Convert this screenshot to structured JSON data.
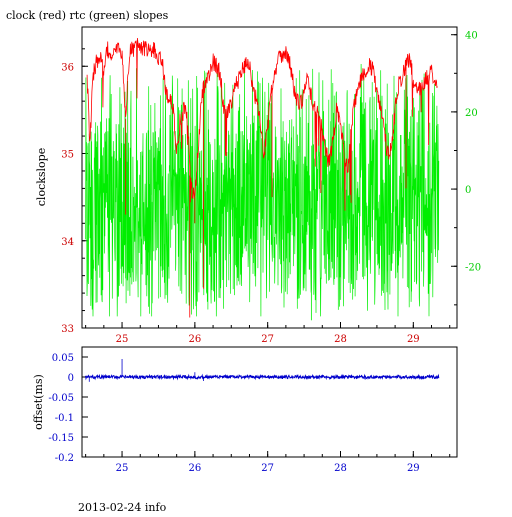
{
  "caption": "2013-02-24 info",
  "colors": {
    "clock": "#ff0000",
    "rtc": "#00ee00",
    "offset": "#0000cc",
    "frame": "#000000",
    "left_ticks": "#cc0000",
    "right_ticks": "#00cc00",
    "offset_ticks": "#0000cc"
  },
  "chart_data": [
    {
      "type": "line",
      "title": "clock (red) rtc (green) slopes",
      "xlabel": "",
      "ylabel": "clockslope",
      "xlim": [
        24.45,
        29.6
      ],
      "ylim": [
        33,
        36.45
      ],
      "y2lim": [
        -36,
        42
      ],
      "grid": false,
      "x_ticks": [
        "25",
        "26",
        "27",
        "28",
        "29"
      ],
      "y_ticks": [
        "33",
        "34",
        "35",
        "36"
      ],
      "y2_ticks": [
        "-20",
        "0",
        "20",
        "40"
      ],
      "series": [
        {
          "name": "clock",
          "axis": "left",
          "x": [
            24.52,
            24.56,
            24.6,
            24.65,
            24.7,
            24.75,
            24.8,
            24.85,
            24.9,
            24.95,
            25.0,
            25.05,
            25.1,
            25.15,
            25.2,
            25.25,
            25.3,
            25.35,
            25.4,
            25.45,
            25.5,
            25.55,
            25.6,
            25.65,
            25.7,
            25.75,
            25.8,
            25.85,
            25.9,
            25.95,
            26.0,
            26.05,
            26.1,
            26.15,
            26.2,
            26.25,
            26.3,
            26.35,
            26.4,
            26.45,
            26.5,
            26.55,
            26.6,
            26.65,
            26.7,
            26.75,
            26.8,
            26.85,
            26.9,
            26.95,
            27.0,
            27.05,
            27.1,
            27.15,
            27.2,
            27.25,
            27.3,
            27.35,
            27.4,
            27.45,
            27.5,
            27.55,
            27.6,
            27.65,
            27.7,
            27.75,
            27.8,
            27.85,
            27.9,
            27.95,
            28.0,
            28.05,
            28.1,
            28.15,
            28.2,
            28.25,
            28.3,
            28.35,
            28.4,
            28.45,
            28.5,
            28.55,
            28.6,
            28.65,
            28.7,
            28.75,
            28.8,
            28.85,
            28.9,
            28.95,
            29.0,
            29.05,
            29.1,
            29.15,
            29.2,
            29.25,
            29.3,
            29.33
          ],
          "values": [
            35.9,
            35.1,
            35.9,
            36.05,
            36.1,
            35.95,
            36.2,
            36.1,
            36.15,
            36.2,
            36.15,
            35.4,
            36.15,
            36.2,
            36.25,
            36.2,
            36.2,
            36.2,
            36.15,
            36.2,
            36.1,
            36.05,
            35.75,
            35.6,
            35.55,
            35.0,
            35.4,
            35.5,
            35.4,
            34.6,
            34.5,
            35.1,
            35.7,
            35.85,
            35.9,
            36.05,
            36.0,
            35.9,
            35.5,
            35.45,
            35.55,
            35.75,
            35.85,
            35.95,
            36.05,
            36.0,
            35.75,
            35.6,
            35.3,
            35.0,
            35.3,
            35.7,
            35.95,
            36.1,
            36.15,
            36.15,
            36.05,
            35.8,
            35.6,
            35.55,
            35.7,
            35.85,
            35.65,
            35.5,
            35.45,
            35.25,
            35.0,
            34.9,
            35.2,
            35.5,
            35.35,
            35.0,
            34.8,
            35.3,
            35.6,
            35.8,
            35.9,
            35.95,
            36.0,
            35.95,
            35.7,
            35.5,
            35.25,
            35.0,
            35.1,
            35.5,
            35.8,
            35.9,
            36.0,
            36.1,
            35.85,
            35.7,
            35.75,
            35.8,
            35.9,
            35.95,
            35.85,
            35.85
          ]
        },
        {
          "name": "rtc",
          "axis": "right",
          "x": [
            24.5,
            25.0,
            25.5,
            26.0,
            26.5,
            27.0,
            27.5,
            28.0,
            28.5,
            29.0,
            29.35
          ],
          "values": [
            -5,
            -6,
            -5,
            -6,
            -5,
            -4,
            -5,
            -5,
            -4,
            -5,
            -5
          ]
        }
      ]
    },
    {
      "type": "line",
      "title": "",
      "xlabel": "",
      "ylabel": "offset(ms)",
      "xlim": [
        24.45,
        29.6
      ],
      "ylim": [
        -0.2,
        0.075
      ],
      "grid": false,
      "x_ticks": [
        "25",
        "26",
        "27",
        "28",
        "29"
      ],
      "y_ticks": [
        "0.05",
        "0",
        "-0.05",
        "-0.1",
        "-0.15",
        "-0.2"
      ],
      "series": [
        {
          "name": "offset",
          "x": [
            24.5,
            25.0,
            25.5,
            26.0,
            26.5,
            27.0,
            27.5,
            28.0,
            28.5,
            29.0,
            29.35
          ],
          "values": [
            0.0,
            0.0,
            0.0,
            0.0,
            0.0,
            0.0,
            0.0,
            0.0,
            0.0,
            0.0,
            0.0
          ]
        }
      ]
    }
  ]
}
